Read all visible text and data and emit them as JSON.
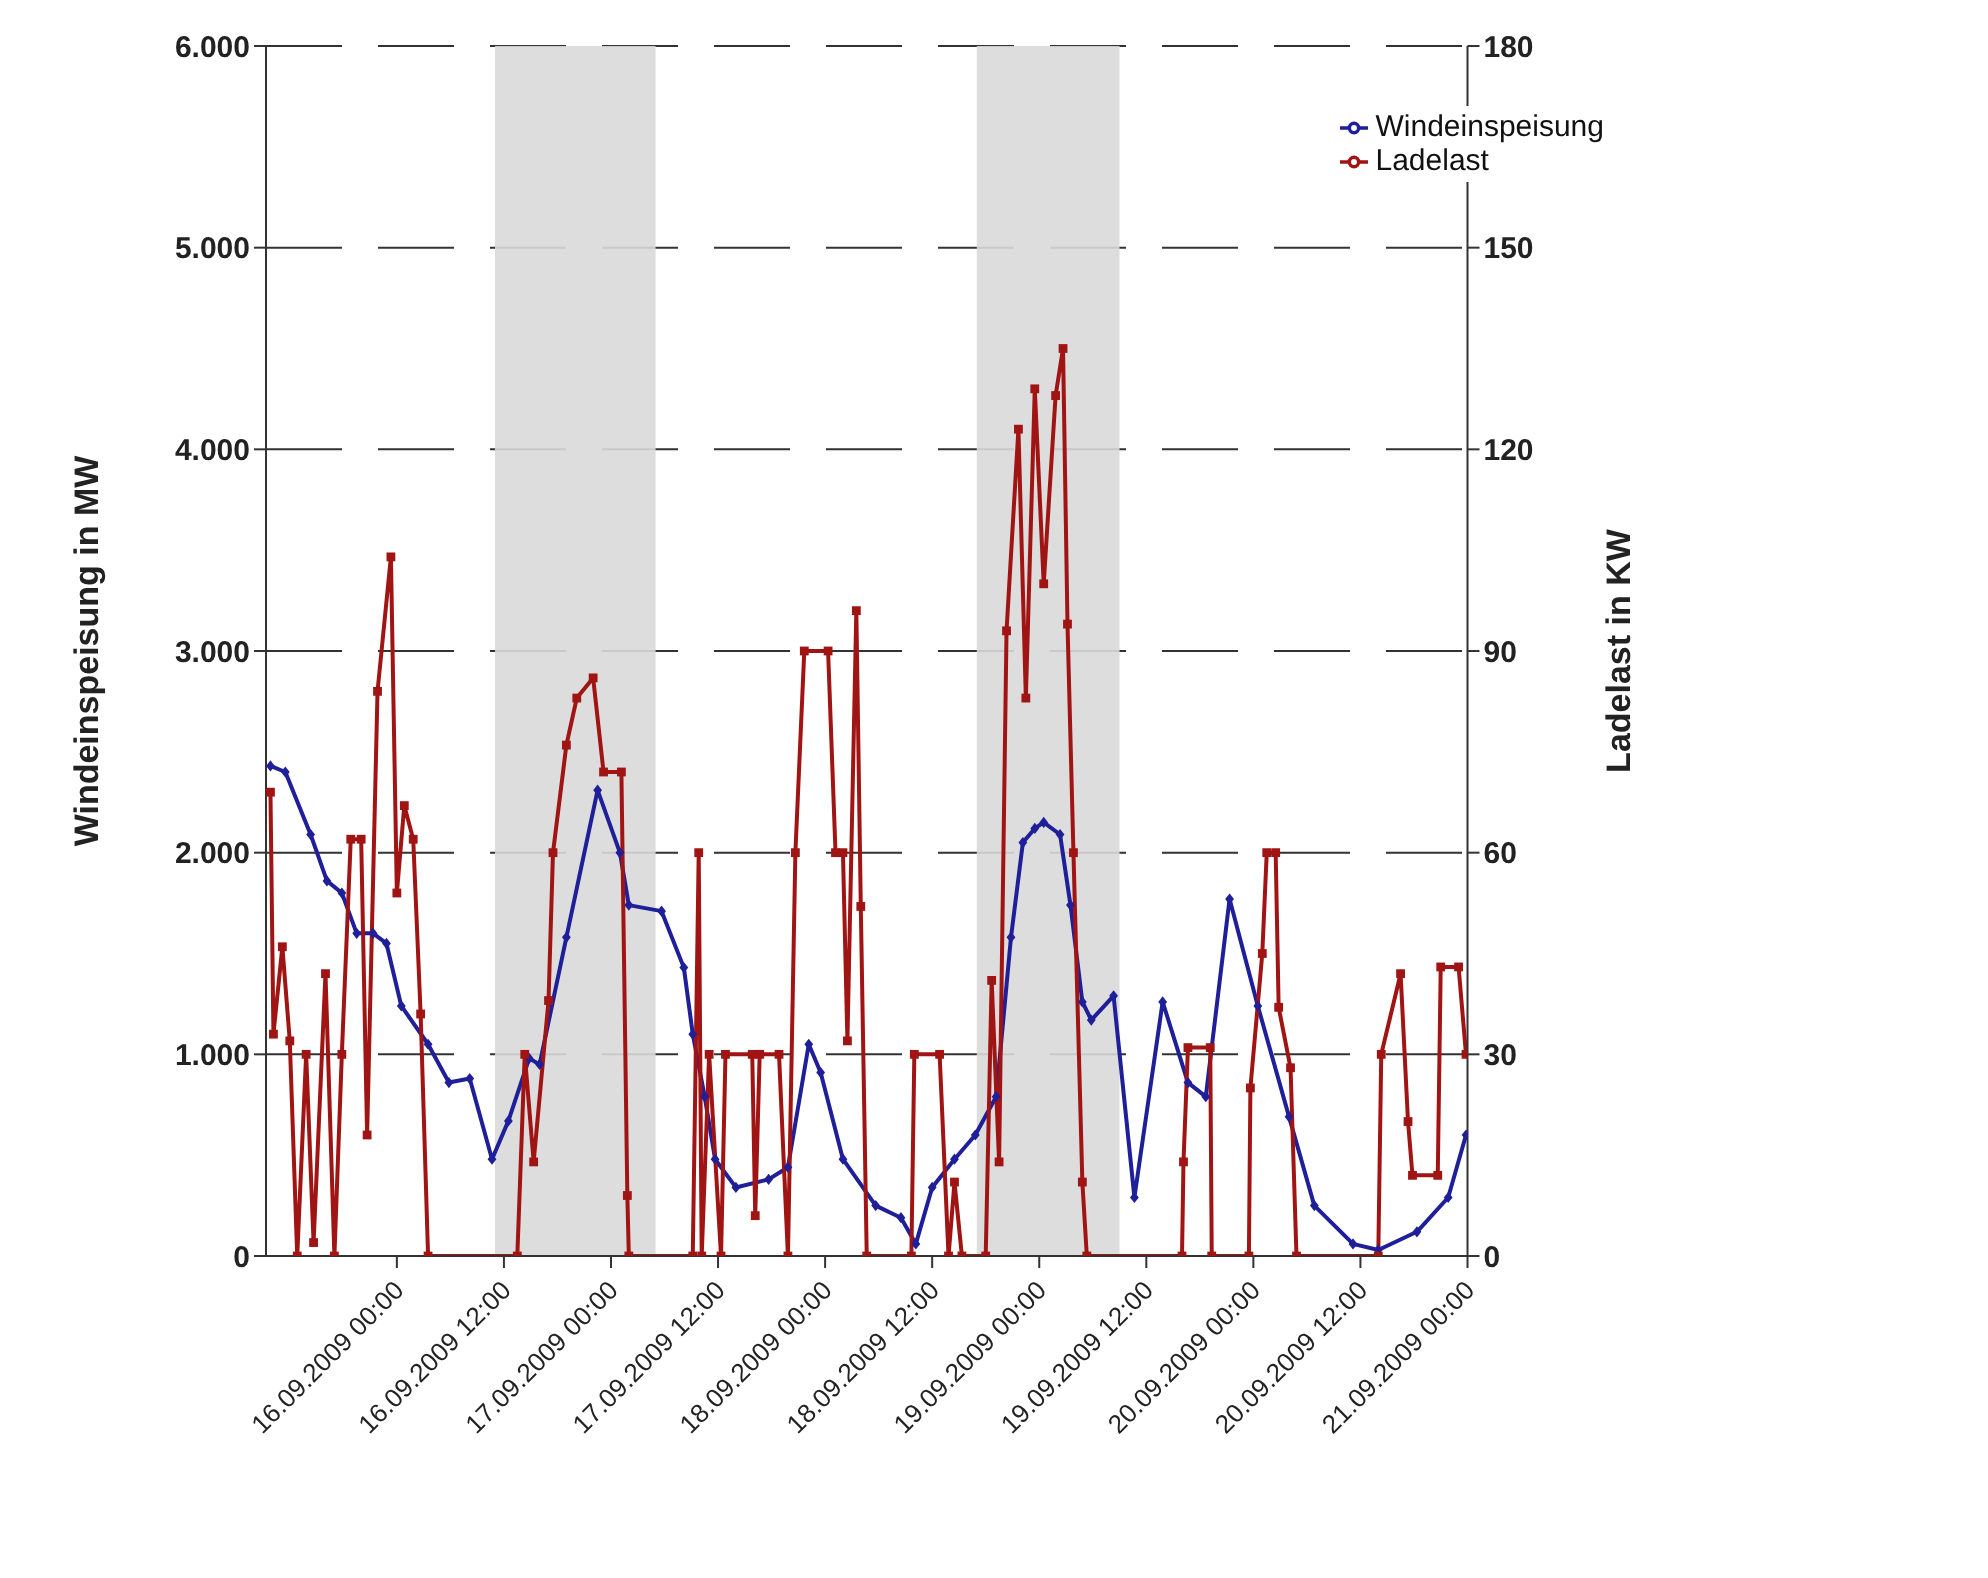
{
  "chart_data": {
    "type": "line",
    "ylabel": "Windeinspeisung in MW",
    "y2label": "Ladelast in KW",
    "xlim": [
      "2009-09-15T09:20",
      "2009-09-21T00:00"
    ],
    "xticks": [
      {
        "value": "2009-09-16T00:00",
        "label": "16.09.2009 00:00"
      },
      {
        "value": "2009-09-16T12:00",
        "label": "16.09.2009 12:00"
      },
      {
        "value": "2009-09-17T00:00",
        "label": "17.09.2009 00:00"
      },
      {
        "value": "2009-09-17T12:00",
        "label": "17.09.2009 12:00"
      },
      {
        "value": "2009-09-18T00:00",
        "label": "18.09.2009 00:00"
      },
      {
        "value": "2009-09-18T12:00",
        "label": "18.09.2009 12:00"
      },
      {
        "value": "2009-09-19T00:00",
        "label": "19.09.2009 00:00"
      },
      {
        "value": "2009-09-19T12:00",
        "label": "19.09.2009 12:00"
      },
      {
        "value": "2009-09-20T00:00",
        "label": "20.09.2009 00:00"
      },
      {
        "value": "2009-09-20T12:00",
        "label": "20.09.2009 12:00"
      },
      {
        "value": "2009-09-21T00:00",
        "label": "21.09.2009 00:00"
      }
    ],
    "ylim": [
      0,
      6000
    ],
    "yticks": [
      0,
      {
        "value": 1000,
        "label": "1.000"
      },
      {
        "value": 2000,
        "label": "2.000"
      },
      {
        "value": 3000,
        "label": "3.000"
      },
      {
        "value": 4000,
        "label": "4.000"
      },
      {
        "value": 5000,
        "label": "5.000"
      },
      {
        "value": 6000,
        "label": "6.000"
      }
    ],
    "y2lim": [
      0,
      180
    ],
    "y2ticks": [
      0,
      30,
      60,
      90,
      120,
      150,
      180
    ],
    "grid": "y",
    "legend": "top right",
    "bands": [
      {
        "axis": "x",
        "from": "2009-09-16T11:00",
        "to": "2009-09-17T05:00",
        "color": "#d9d9d9"
      },
      {
        "axis": "x",
        "from": "2009-09-18T17:00",
        "to": "2009-09-19T09:00",
        "color": "#d9d9d9"
      }
    ],
    "series": [
      {
        "name": "Windeinspeisung",
        "color": "#1f1f9a",
        "marker": "diamond",
        "x": [
          "2009-09-15T09:50",
          "2009-09-15T11:30",
          "2009-09-15T14:20",
          "2009-09-15T16:10",
          "2009-09-15T17:50",
          "2009-09-15T19:30",
          "2009-09-15T21:20",
          "2009-09-15T22:50",
          "2009-09-16T00:30",
          "2009-09-16T03:30",
          "2009-09-16T05:50",
          "2009-09-16T08:10",
          "2009-09-16T10:40",
          "2009-09-16T12:30",
          "2009-09-16T14:50",
          "2009-09-16T16:00",
          "2009-09-16T19:00",
          "2009-09-16T22:30",
          "2009-09-17T01:00",
          "2009-09-17T02:00",
          "2009-09-17T05:40",
          "2009-09-17T08:10",
          "2009-09-17T09:10",
          "2009-09-17T10:30",
          "2009-09-17T11:40",
          "2009-09-17T14:00",
          "2009-09-17T17:40",
          "2009-09-17T19:50",
          "2009-09-17T22:10",
          "2009-09-17T23:30",
          "2009-09-18T02:00",
          "2009-09-18T05:40",
          "2009-09-18T08:30",
          "2009-09-18T10:10",
          "2009-09-18T12:00",
          "2009-09-18T14:30",
          "2009-09-18T16:50",
          "2009-09-18T19:10",
          "2009-09-18T20:50",
          "2009-09-18T22:10",
          "2009-09-18T23:30",
          "2009-09-19T00:30",
          "2009-09-19T02:20",
          "2009-09-19T03:30",
          "2009-09-19T04:50",
          "2009-09-19T05:50",
          "2009-09-19T08:20",
          "2009-09-19T10:40",
          "2009-09-19T13:50",
          "2009-09-19T16:40",
          "2009-09-19T18:40",
          "2009-09-19T21:20",
          "2009-09-20T00:30",
          "2009-09-20T04:00",
          "2009-09-20T06:50",
          "2009-09-20T11:10",
          "2009-09-20T14:00",
          "2009-09-20T18:20",
          "2009-09-20T21:50",
          "2009-09-20T23:50"
        ],
        "values": [
          2430,
          2400,
          2090,
          1860,
          1800,
          1600,
          1600,
          1550,
          1240,
          1050,
          860,
          880,
          480,
          670,
          980,
          950,
          1580,
          2310,
          2000,
          1740,
          1710,
          1430,
          1100,
          790,
          480,
          340,
          380,
          440,
          1050,
          910,
          480,
          250,
          190,
          60,
          340,
          480,
          600,
          790,
          1580,
          2050,
          2120,
          2150,
          2090,
          1740,
          1260,
          1170,
          1290,
          290,
          1260,
          860,
          790,
          1770,
          1240,
          690,
          250,
          60,
          30,
          120,
          290,
          600
        ]
      },
      {
        "name": "Ladelast",
        "color": "#a01414",
        "marker": "square",
        "axis": "y2",
        "x": [
          "2009-09-15T09:50",
          "2009-09-15T10:10",
          "2009-09-15T11:10",
          "2009-09-15T12:00",
          "2009-09-15T12:50",
          "2009-09-15T13:50",
          "2009-09-15T14:40",
          "2009-09-15T16:00",
          "2009-09-15T17:00",
          "2009-09-15T17:50",
          "2009-09-15T18:50",
          "2009-09-15T20:00",
          "2009-09-15T20:40",
          "2009-09-15T21:50",
          "2009-09-15T23:20",
          "2009-09-16T00:00",
          "2009-09-16T00:50",
          "2009-09-16T01:50",
          "2009-09-16T02:40",
          "2009-09-16T03:30",
          "2009-09-16T13:30",
          "2009-09-16T14:20",
          "2009-09-16T15:20",
          "2009-09-16T17:00",
          "2009-09-16T17:30",
          "2009-09-16T19:00",
          "2009-09-16T20:10",
          "2009-09-16T22:00",
          "2009-09-16T23:10",
          "2009-09-17T01:10",
          "2009-09-17T01:50",
          "2009-09-17T02:00",
          "2009-09-17T09:10",
          "2009-09-17T09:50",
          "2009-09-17T10:10",
          "2009-09-17T11:00",
          "2009-09-17T12:20",
          "2009-09-17T12:50",
          "2009-09-17T15:50",
          "2009-09-17T16:10",
          "2009-09-17T16:40",
          "2009-09-17T18:50",
          "2009-09-17T19:50",
          "2009-09-17T20:40",
          "2009-09-17T21:40",
          "2009-09-18T00:20",
          "2009-09-18T01:10",
          "2009-09-18T02:00",
          "2009-09-18T02:30",
          "2009-09-18T03:30",
          "2009-09-18T04:00",
          "2009-09-18T04:40",
          "2009-09-18T09:40",
          "2009-09-18T10:00",
          "2009-09-18T12:50",
          "2009-09-18T13:50",
          "2009-09-18T14:30",
          "2009-09-18T15:20",
          "2009-09-18T18:00",
          "2009-09-18T18:40",
          "2009-09-18T19:30",
          "2009-09-18T20:20",
          "2009-09-18T21:40",
          "2009-09-18T22:30",
          "2009-09-18T23:30",
          "2009-09-19T00:30",
          "2009-09-19T01:50",
          "2009-09-19T02:40",
          "2009-09-19T03:10",
          "2009-09-19T03:50",
          "2009-09-19T04:50",
          "2009-09-19T05:20",
          "2009-09-19T16:00",
          "2009-09-19T16:10",
          "2009-09-19T16:40",
          "2009-09-19T19:10",
          "2009-09-19T19:20",
          "2009-09-19T23:30",
          "2009-09-19T23:40",
          "2009-09-20T01:00",
          "2009-09-20T01:30",
          "2009-09-20T02:30",
          "2009-09-20T02:50",
          "2009-09-20T04:10",
          "2009-09-20T04:50",
          "2009-09-20T14:00",
          "2009-09-20T14:20",
          "2009-09-20T16:30",
          "2009-09-20T17:20",
          "2009-09-20T17:50",
          "2009-09-20T20:40",
          "2009-09-20T21:00",
          "2009-09-20T23:00",
          "2009-09-20T23:50"
        ],
        "values": [
          69,
          33,
          46,
          32,
          0,
          30,
          2,
          42,
          0,
          30,
          62,
          62,
          18,
          84,
          104,
          54,
          67,
          62,
          36,
          0,
          0,
          30,
          14,
          38,
          60,
          76,
          83,
          86,
          72,
          72,
          9,
          0,
          0,
          60,
          0,
          30,
          0,
          30,
          30,
          6,
          30,
          30,
          0,
          60,
          90,
          90,
          60,
          60,
          32,
          96,
          52,
          0,
          0,
          30,
          30,
          0,
          11,
          0,
          0,
          41,
          14,
          93,
          123,
          83,
          129,
          100,
          128,
          135,
          94,
          60,
          11,
          0,
          0,
          14,
          31,
          31,
          0,
          0,
          25,
          45,
          60,
          60,
          37,
          28,
          0,
          0,
          30,
          42,
          20,
          12,
          12,
          43,
          43,
          30
        ]
      }
    ]
  }
}
